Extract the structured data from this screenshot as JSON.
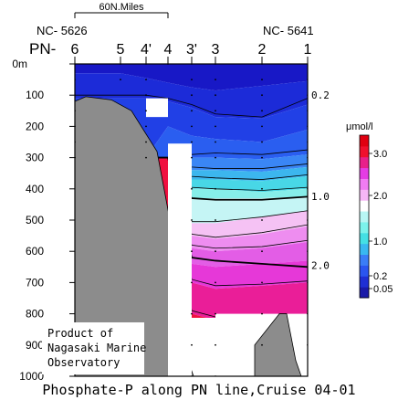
{
  "chart_data": {
    "type": "heatmap",
    "title": "Phosphate-P along PN line,Cruise 04-01",
    "unit_label": "μmol/l",
    "scale_label": "60N.Miles",
    "stations": [
      {
        "label": "6",
        "x": 0
      },
      {
        "label": "5",
        "x": 50
      },
      {
        "label": "4'",
        "x": 78
      },
      {
        "label": "4",
        "x": 102
      },
      {
        "label": "3'",
        "x": 128
      },
      {
        "label": "3",
        "x": 154
      },
      {
        "label": "2",
        "x": 205
      },
      {
        "label": "1",
        "x": 255
      }
    ],
    "station_prefix": "PN-",
    "left_station_id": "NC- 5626",
    "right_station_id": "NC- 5641",
    "x_range": [
      0,
      255
    ],
    "y_range": [
      0,
      1000
    ],
    "y_ticks": [
      0,
      100,
      200,
      300,
      400,
      500,
      600,
      700,
      800,
      900,
      1000
    ],
    "y_tick_labels": [
      "0m",
      "100",
      "200",
      "300",
      "400",
      "500",
      "600",
      "700",
      "800",
      "900",
      "1000"
    ],
    "contour_labels": [
      {
        "text": "0.2",
        "depth": 105
      },
      {
        "text": "1.0",
        "depth": 430
      },
      {
        "text": "2.0",
        "depth": 650
      }
    ],
    "contour_levels": [
      0.2,
      0.4,
      0.6,
      0.8,
      1.0,
      1.2,
      1.4,
      1.6,
      1.8,
      2.0,
      2.2,
      2.4,
      2.6
    ],
    "bold_levels": [
      1.0,
      2.0
    ],
    "stations_profile_depth": [
      300,
      80,
      300,
      40,
      1000,
      1000,
      900,
      1000
    ],
    "bottom_profile": [
      {
        "x": 0,
        "depth": 1000
      },
      {
        "x": 0,
        "depth": 120
      },
      {
        "x": 12,
        "depth": 105
      },
      {
        "x": 40,
        "depth": 115
      },
      {
        "x": 62,
        "depth": 150
      },
      {
        "x": 90,
        "depth": 280
      },
      {
        "x": 108,
        "depth": 560
      },
      {
        "x": 118,
        "depth": 800
      },
      {
        "x": 124,
        "depth": 950
      },
      {
        "x": 130,
        "depth": 1000
      }
    ],
    "bottom_profile_2": [
      {
        "x": 197,
        "depth": 1000
      },
      {
        "x": 197,
        "depth": 900
      },
      {
        "x": 224,
        "depth": 800
      },
      {
        "x": 232,
        "depth": 800
      },
      {
        "x": 242,
        "depth": 950
      },
      {
        "x": 248,
        "depth": 1000
      }
    ],
    "colorbar": {
      "tick_labels": [
        "3.0",
        "2.0",
        "1.0",
        "0.2",
        "0.05"
      ],
      "tick_values": [
        3.0,
        2.0,
        1.0,
        0.2,
        0.05
      ],
      "colors": [
        "#1a1aa8",
        "#1f2fd4",
        "#2a55f0",
        "#3a7df7",
        "#39b8f0",
        "#44e0e4",
        "#7cf3ec",
        "#b8f6f4",
        "#ffffff",
        "#f6b6f6",
        "#f07cf2",
        "#e53ce4",
        "#e8208a",
        "#f0102d",
        "#e00010"
      ]
    },
    "credit_lines": [
      "Product of",
      "Nagasaki Marine",
      "Observatory"
    ]
  }
}
